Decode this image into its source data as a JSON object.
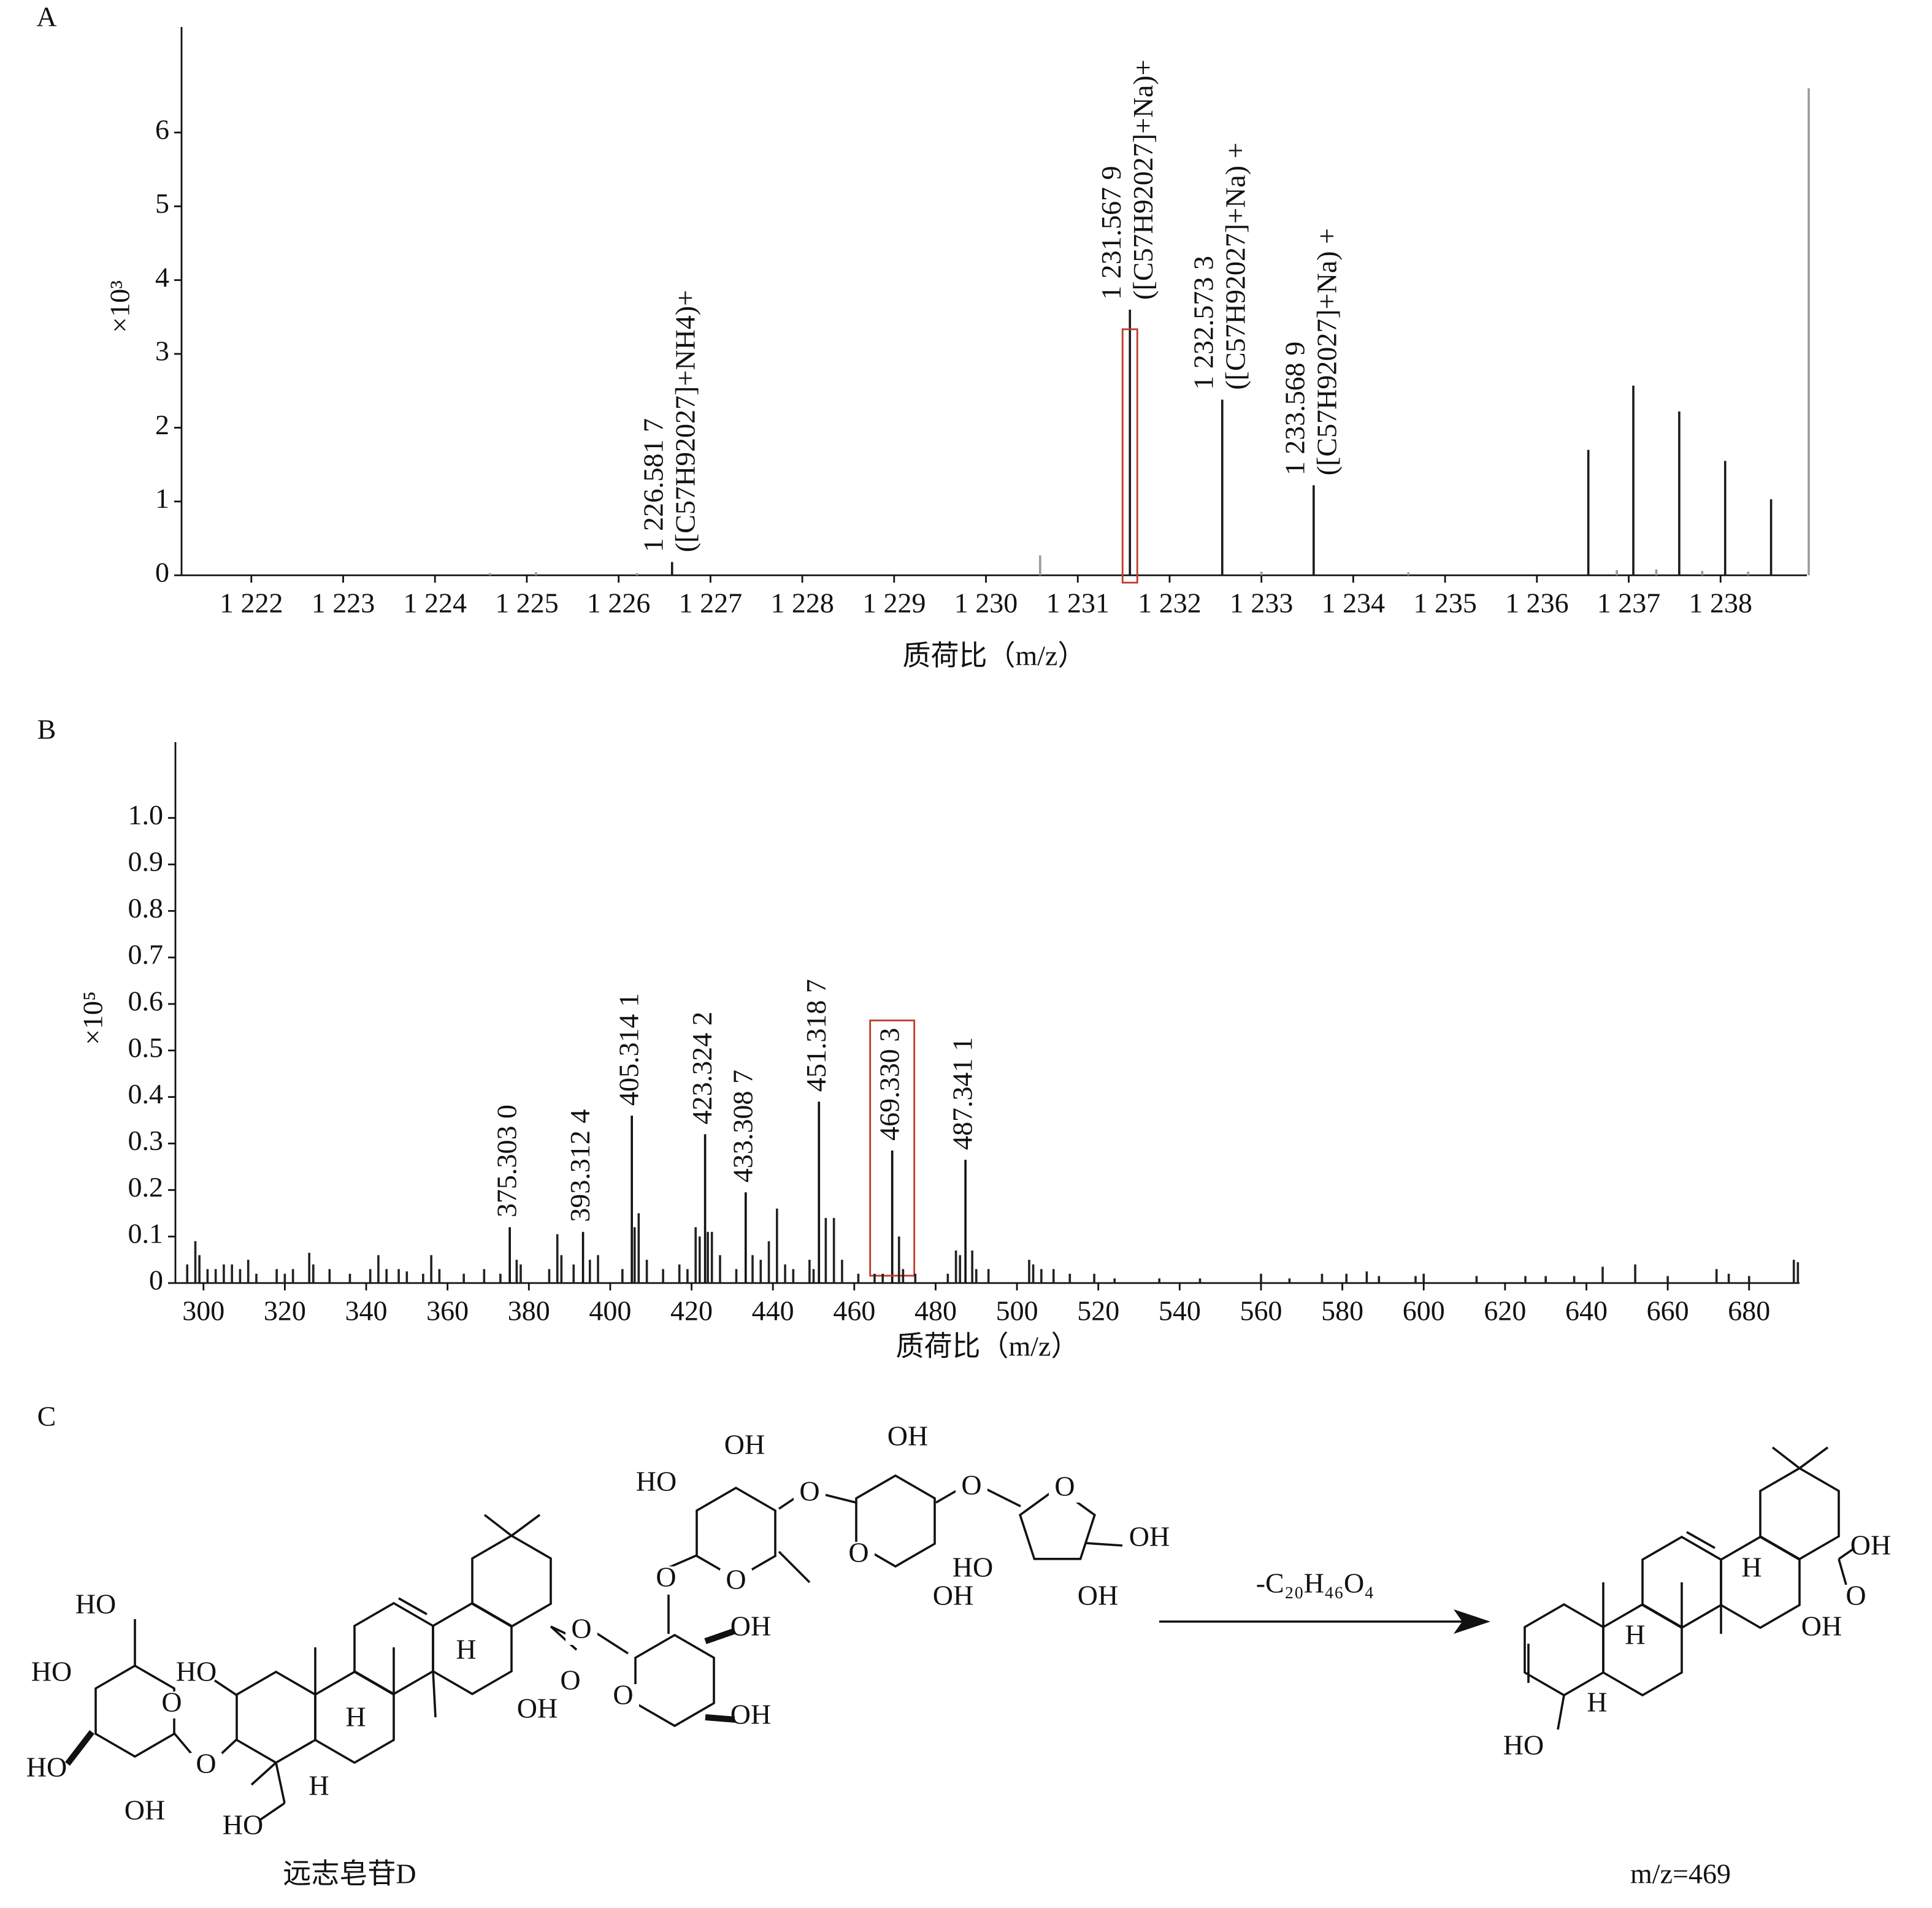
{
  "chart_data": [
    {
      "type": "stem",
      "panel_label": "A",
      "y_label": "×10³",
      "x_label": "质荷比（m/z）",
      "xlim": [
        1221.24,
        1238.94
      ],
      "ylim": [
        0,
        7.43
      ],
      "xticks": [
        {
          "value": 1222,
          "label": "1 222"
        },
        {
          "value": 1223,
          "label": "1 223"
        },
        {
          "value": 1224,
          "label": "1 224"
        },
        {
          "value": 1225,
          "label": "1 225"
        },
        {
          "value": 1226,
          "label": "1 226"
        },
        {
          "value": 1227,
          "label": "1 227"
        },
        {
          "value": 1228,
          "label": "1 228"
        },
        {
          "value": 1229,
          "label": "1 229"
        },
        {
          "value": 1230,
          "label": "1 230"
        },
        {
          "value": 1231,
          "label": "1 231"
        },
        {
          "value": 1232,
          "label": "1 232"
        },
        {
          "value": 1233,
          "label": "1 233"
        },
        {
          "value": 1234,
          "label": "1 234"
        },
        {
          "value": 1235,
          "label": "1 235"
        },
        {
          "value": 1236,
          "label": "1 236"
        },
        {
          "value": 1237,
          "label": "1 237"
        },
        {
          "value": 1238,
          "label": "1 238"
        }
      ],
      "yticks": [
        0,
        1,
        2,
        3,
        4,
        5,
        6
      ],
      "highlight_color": "#c0392b",
      "series": [
        {
          "color": "#1a1a1a",
          "x": [
            1226.5817,
            1231.5679,
            1232.5733,
            1233.5689,
            1236.56,
            1237.05,
            1237.55,
            1238.05,
            1238.55
          ],
          "values": [
            0.18,
            3.6,
            2.38,
            1.22,
            1.7,
            2.57,
            2.22,
            1.55,
            1.03
          ],
          "x_labels": [
            "1 226.581 7",
            "1 231.567 9",
            "1 232.573 3",
            "1 233.568 9",
            null,
            null,
            null,
            null,
            null
          ],
          "ion_labels": [
            "([C57H92027]+NH4)+",
            "([C57H92027]+Na)+",
            "([C57H92027]+Na) +",
            "([C57H92027]+Na) +",
            null,
            null,
            null,
            null,
            null
          ],
          "boxed": [
            false,
            true,
            false,
            false,
            false,
            false,
            false,
            false,
            false
          ]
        },
        {
          "color": "#9a9a9a",
          "x": [
            1230.59,
            1238.96,
            1236.87,
            1237.3,
            1237.8,
            1238.3,
            1233.0,
            1234.6,
            1224.6,
            1225.1,
            1226.2
          ],
          "values": [
            0.27,
            6.6,
            0.07,
            0.08,
            0.06,
            0.05,
            0.05,
            0.04,
            0.03,
            0.04,
            0.03
          ]
        }
      ]
    },
    {
      "type": "stem",
      "panel_label": "B",
      "y_label": "×10⁵",
      "x_label": "质荷比（m/z）",
      "xlim": [
        293.1,
        692.4
      ],
      "ylim": [
        0,
        1.163
      ],
      "xticks": [
        300,
        320,
        340,
        360,
        380,
        400,
        420,
        440,
        460,
        480,
        500,
        520,
        540,
        560,
        580,
        600,
        620,
        640,
        660,
        680
      ],
      "yticks": [
        0,
        0.1,
        0.2,
        0.3,
        0.4,
        0.5,
        0.6,
        0.7,
        0.8,
        0.9,
        {
          "value": 1,
          "label": "1.0"
        }
      ],
      "highlight_color": "#c0392b",
      "series": [
        {
          "color": "#111111",
          "x": [
            375.303,
            393.3124,
            405.3141,
            423.3242,
            433.3087,
            451.3187,
            469.3303,
            487.3411
          ],
          "values": [
            0.12,
            0.11,
            0.36,
            0.32,
            0.195,
            0.39,
            0.285,
            0.265
          ],
          "x_labels": [
            "375.303 0",
            "393.312 4",
            "405.314 1",
            "423.324 2",
            "433.308 7",
            "451.318 7",
            "469.330 3",
            "487.341 1"
          ],
          "boxed": [
            false,
            false,
            false,
            false,
            false,
            false,
            true,
            false
          ]
        },
        {
          "color": "#222222",
          "x": [
            296,
            298,
            299,
            301,
            303,
            305,
            307,
            309,
            311,
            313,
            318,
            320,
            322,
            326,
            327,
            331,
            336,
            341,
            343,
            345,
            348,
            350,
            354,
            356,
            358,
            364,
            369,
            373,
            377,
            378,
            385,
            387,
            388,
            391,
            395,
            397,
            403,
            406,
            407,
            409,
            413,
            417,
            419,
            421,
            422,
            424,
            425,
            427,
            431,
            435,
            437,
            439,
            441,
            443,
            445,
            449,
            450,
            453,
            455,
            457,
            461,
            465,
            467,
            471,
            472,
            475,
            483,
            485,
            486,
            489,
            490,
            493,
            503,
            504,
            506,
            509,
            513,
            519,
            524,
            535,
            545,
            560,
            567,
            575,
            581,
            586,
            589,
            598,
            600,
            613,
            625,
            630,
            637,
            644,
            652,
            660,
            672,
            675,
            680,
            691,
            692
          ],
          "values": [
            0.04,
            0.09,
            0.06,
            0.03,
            0.03,
            0.04,
            0.04,
            0.03,
            0.05,
            0.02,
            0.03,
            0.02,
            0.03,
            0.065,
            0.04,
            0.03,
            0.02,
            0.03,
            0.06,
            0.03,
            0.03,
            0.025,
            0.02,
            0.06,
            0.03,
            0.02,
            0.03,
            0.02,
            0.05,
            0.04,
            0.03,
            0.105,
            0.06,
            0.04,
            0.05,
            0.06,
            0.03,
            0.12,
            0.15,
            0.05,
            0.03,
            0.04,
            0.03,
            0.12,
            0.1,
            0.11,
            0.11,
            0.06,
            0.03,
            0.06,
            0.05,
            0.09,
            0.16,
            0.04,
            0.03,
            0.05,
            0.03,
            0.14,
            0.14,
            0.05,
            0.02,
            0.02,
            0.02,
            0.1,
            0.03,
            0.02,
            0.02,
            0.07,
            0.06,
            0.07,
            0.03,
            0.03,
            0.05,
            0.04,
            0.03,
            0.03,
            0.02,
            0.02,
            0.01,
            0.01,
            0.01,
            0.02,
            0.01,
            0.02,
            0.02,
            0.025,
            0.015,
            0.015,
            0.02,
            0.015,
            0.015,
            0.015,
            0.015,
            0.035,
            0.04,
            0.015,
            0.03,
            0.02,
            0.015,
            0.05,
            0.045
          ]
        }
      ]
    }
  ],
  "diagram": {
    "panel_label": "C",
    "left_name": "远志皂苷D",
    "reaction": "-C₂₀H₄₆O₄",
    "right_name": "m/z=469",
    "left_labels": [
      "HO",
      "HO",
      "HO",
      "OH",
      "O",
      "HO",
      "O",
      "HO",
      "H",
      "H",
      "H",
      "O",
      "OH",
      "O",
      "O",
      "OH",
      "OH",
      "O",
      "HO",
      "OH",
      "O",
      "O",
      "OH",
      "O",
      "O",
      "HO",
      "OH",
      "O",
      "OH",
      "OH"
    ],
    "right_labels": [
      "OH",
      "O",
      "OH",
      "H",
      "H",
      "H",
      "HO"
    ]
  }
}
